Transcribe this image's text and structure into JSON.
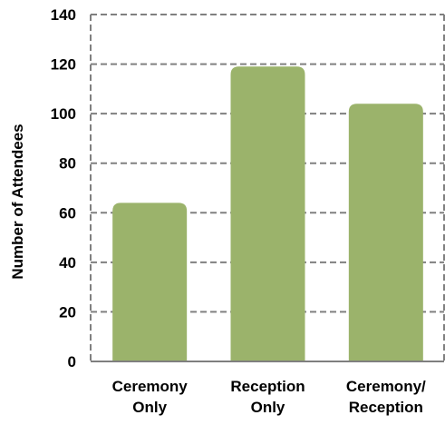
{
  "chart_data": {
    "type": "bar",
    "title": "",
    "xlabel": "",
    "ylabel": "Number of Attendees",
    "categories": [
      [
        "Ceremony",
        "Only"
      ],
      [
        "Reception",
        "Only"
      ],
      [
        "Ceremony/",
        "Reception"
      ]
    ],
    "values": [
      64,
      119,
      104
    ],
    "ylim": [
      0,
      140
    ],
    "yticks": [
      "0",
      "20",
      "40",
      "60",
      "80",
      "100",
      "120",
      "140"
    ],
    "grid": true,
    "bar_color": "#9bb36b",
    "grid_color": "#808080"
  }
}
